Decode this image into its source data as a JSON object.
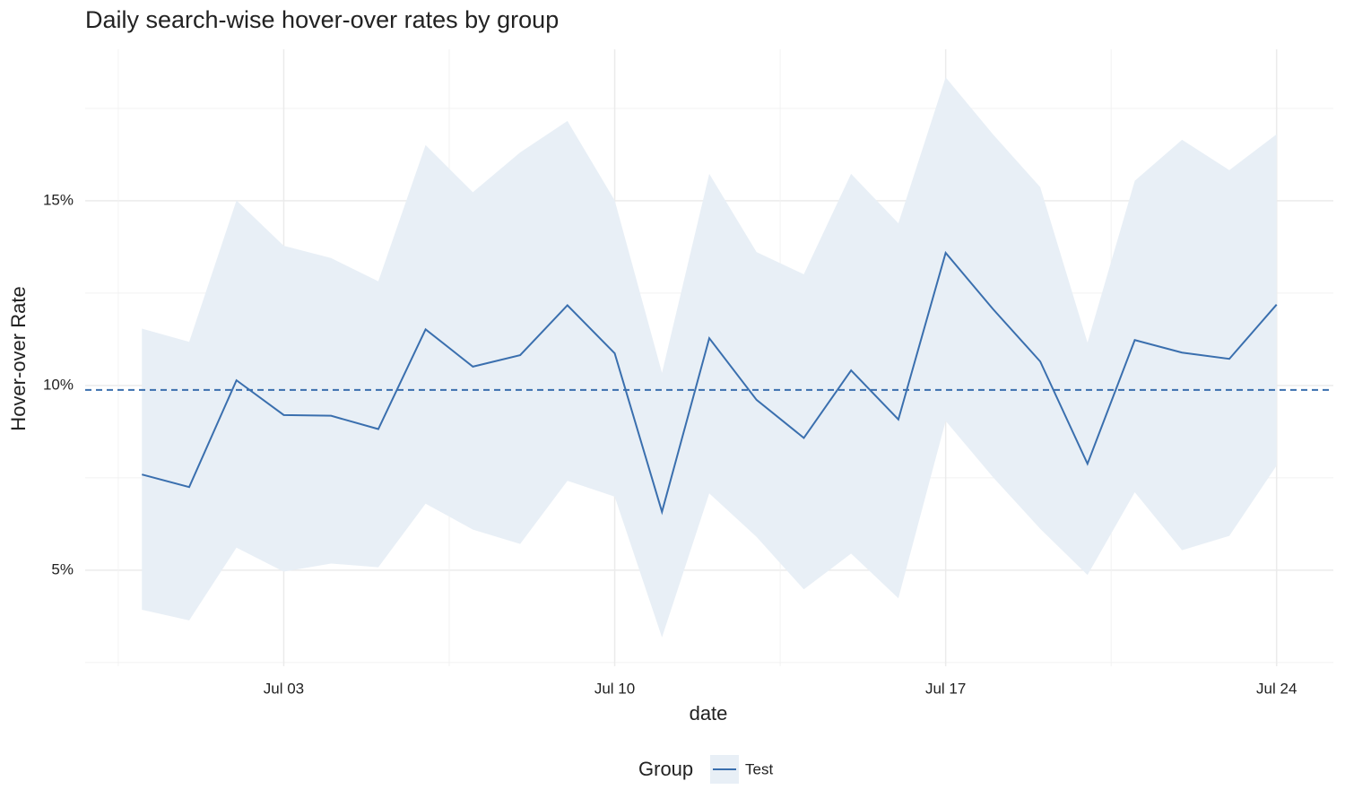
{
  "chart_data": {
    "type": "line_band",
    "title": "Daily search-wise hover-over rates by group",
    "xlabel": "date",
    "ylabel": "Hover-over Rate",
    "x": [
      "Jun 30",
      "Jul 01",
      "Jul 02",
      "Jul 03",
      "Jul 04",
      "Jul 05",
      "Jul 06",
      "Jul 07",
      "Jul 08",
      "Jul 09",
      "Jul 10",
      "Jul 11",
      "Jul 12",
      "Jul 13",
      "Jul 14",
      "Jul 15",
      "Jul 16",
      "Jul 17",
      "Jul 18",
      "Jul 19",
      "Jul 20",
      "Jul 21",
      "Jul 22",
      "Jul 23",
      "Jul 24"
    ],
    "xticks": [
      "Jul 03",
      "Jul 10",
      "Jul 17",
      "Jul 24"
    ],
    "ylim": [
      2.4,
      19.1
    ],
    "yticks": [
      {
        "value": 5,
        "label": "5%"
      },
      {
        "value": 10,
        "label": "10%"
      },
      {
        "value": 15,
        "label": "15%"
      }
    ],
    "grid": true,
    "legend_title": "Group",
    "legend_position": "bottom",
    "reference_line": 9.88,
    "series": [
      {
        "name": "Test",
        "color": "#3a6fae",
        "band_color": "#e8eff6",
        "values": [
          7.59,
          7.25,
          10.14,
          9.2,
          9.18,
          8.82,
          11.52,
          10.51,
          10.82,
          12.17,
          10.87,
          6.58,
          11.28,
          9.61,
          8.58,
          10.41,
          9.08,
          13.59,
          12.07,
          10.65,
          7.88,
          11.23,
          10.89,
          10.72,
          12.19
        ],
        "upper": [
          11.54,
          11.18,
          15.01,
          13.78,
          13.45,
          12.82,
          16.51,
          15.23,
          16.31,
          17.16,
          15.01,
          10.34,
          15.73,
          13.61,
          13.01,
          15.73,
          14.39,
          18.34,
          16.8,
          15.37,
          11.16,
          15.54,
          16.65,
          15.83,
          16.8
        ],
        "lower": [
          3.93,
          3.64,
          5.61,
          4.96,
          5.18,
          5.08,
          6.8,
          6.1,
          5.71,
          7.42,
          6.99,
          3.18,
          7.08,
          5.9,
          4.48,
          5.45,
          4.24,
          9.04,
          7.52,
          6.12,
          4.87,
          7.11,
          5.54,
          5.93,
          7.83
        ]
      }
    ]
  }
}
